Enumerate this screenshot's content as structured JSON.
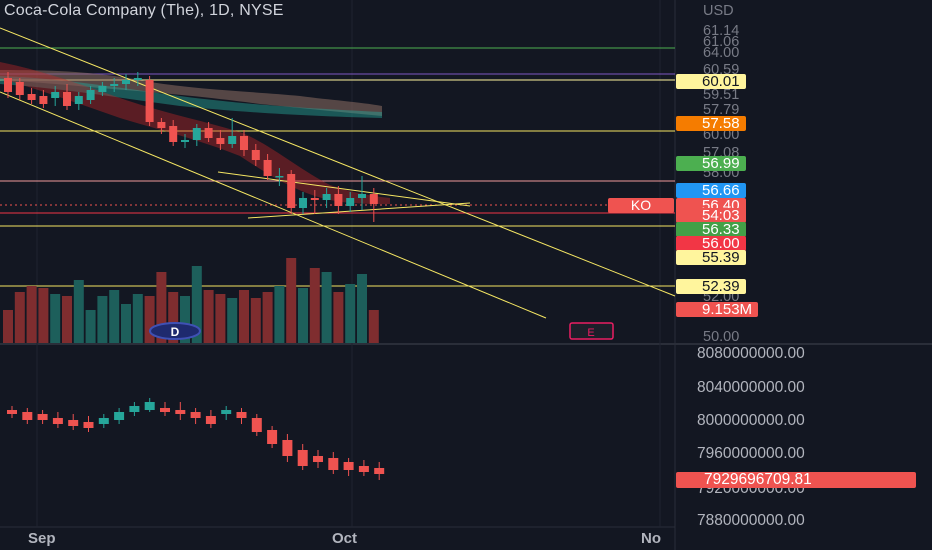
{
  "header": {
    "title": "Coca-Cola Company (The), 1D, NYSE"
  },
  "price_scale": {
    "currency": "USD",
    "labels": [
      "61.14",
      "61.06",
      "64.00",
      "60.59",
      "59.51",
      "57.79",
      "60.00",
      "57.08",
      "58.00"
    ],
    "bottom_label": "50.00",
    "obscured_label": "52.00"
  },
  "price_tags": [
    {
      "name": "level-60-01",
      "text": "60.01",
      "bg": "#fff59d",
      "fg": "#131722"
    },
    {
      "name": "level-57-58",
      "text": "57.58",
      "bg": "#f57c00",
      "fg": "#ffffff"
    },
    {
      "name": "level-56-99",
      "text": "56.99",
      "bg": "#4caf50",
      "fg": "#ffffff"
    },
    {
      "name": "level-56-66",
      "text": "56.66",
      "bg": "#2196f3",
      "fg": "#ffffff"
    },
    {
      "name": "last-price",
      "text": "56.40",
      "bg": "#ef5350",
      "fg": "#ffffff"
    },
    {
      "name": "countdown",
      "text": "54:03",
      "bg": "#ef5350",
      "fg": "#ffffff"
    },
    {
      "name": "level-56-33",
      "text": "56.33",
      "bg": "#43a047",
      "fg": "#ffffff"
    },
    {
      "name": "level-56-00",
      "text": "56.00",
      "bg": "#f23645",
      "fg": "#ffffff"
    },
    {
      "name": "level-55-39",
      "text": "55.39",
      "bg": "#fff59d",
      "fg": "#131722"
    },
    {
      "name": "level-52-39",
      "text": "52.39",
      "bg": "#fff59d",
      "fg": "#131722"
    },
    {
      "name": "volume",
      "text": "9.153M",
      "bg": "#ef5350",
      "fg": "#ffffff"
    }
  ],
  "symbol_tag": {
    "text": "KO",
    "bg": "#ef5350",
    "fg": "#ffffff"
  },
  "markers": {
    "dividend": "D",
    "earnings": "E"
  },
  "indicator": {
    "scale_labels": [
      "8080000000.00",
      "8040000000.00",
      "8000000000.00",
      "7960000000.00",
      "7920000000.00",
      "7880000000.00"
    ],
    "last_value": "7929696709.81",
    "last_bg": "#ef5350"
  },
  "time_axis": {
    "labels": [
      "Sep",
      "Oct",
      "No"
    ]
  },
  "colors": {
    "background": "#131722",
    "up": "#26a69a",
    "down": "#ef5350",
    "trendline": "#f5e663"
  }
}
